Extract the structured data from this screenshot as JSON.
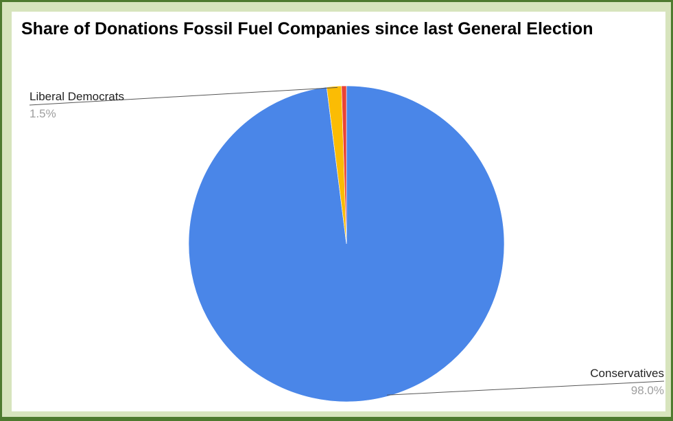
{
  "chart_data": {
    "type": "pie",
    "title": "Share of Donations Fossil Fuel Companies since last General Election",
    "slices": [
      {
        "label": "Conservatives",
        "value": 98.0,
        "value_label": "98.0%",
        "color": "#4a86e8"
      },
      {
        "label": "Liberal Democrats",
        "value": 1.5,
        "value_label": "1.5%",
        "color": "#fbbc04"
      },
      {
        "label": "",
        "value": 0.5,
        "value_label": "",
        "color": "#ea4335"
      }
    ],
    "start_angle": "top",
    "direction": "clockwise",
    "legend": "none"
  },
  "colors": {
    "border": "#4e7a2f",
    "background": "#d7e4bd",
    "plot_background": "#ffffff",
    "label_text": "#222222",
    "value_text": "#9e9e9e",
    "leader_line": "#555555"
  }
}
